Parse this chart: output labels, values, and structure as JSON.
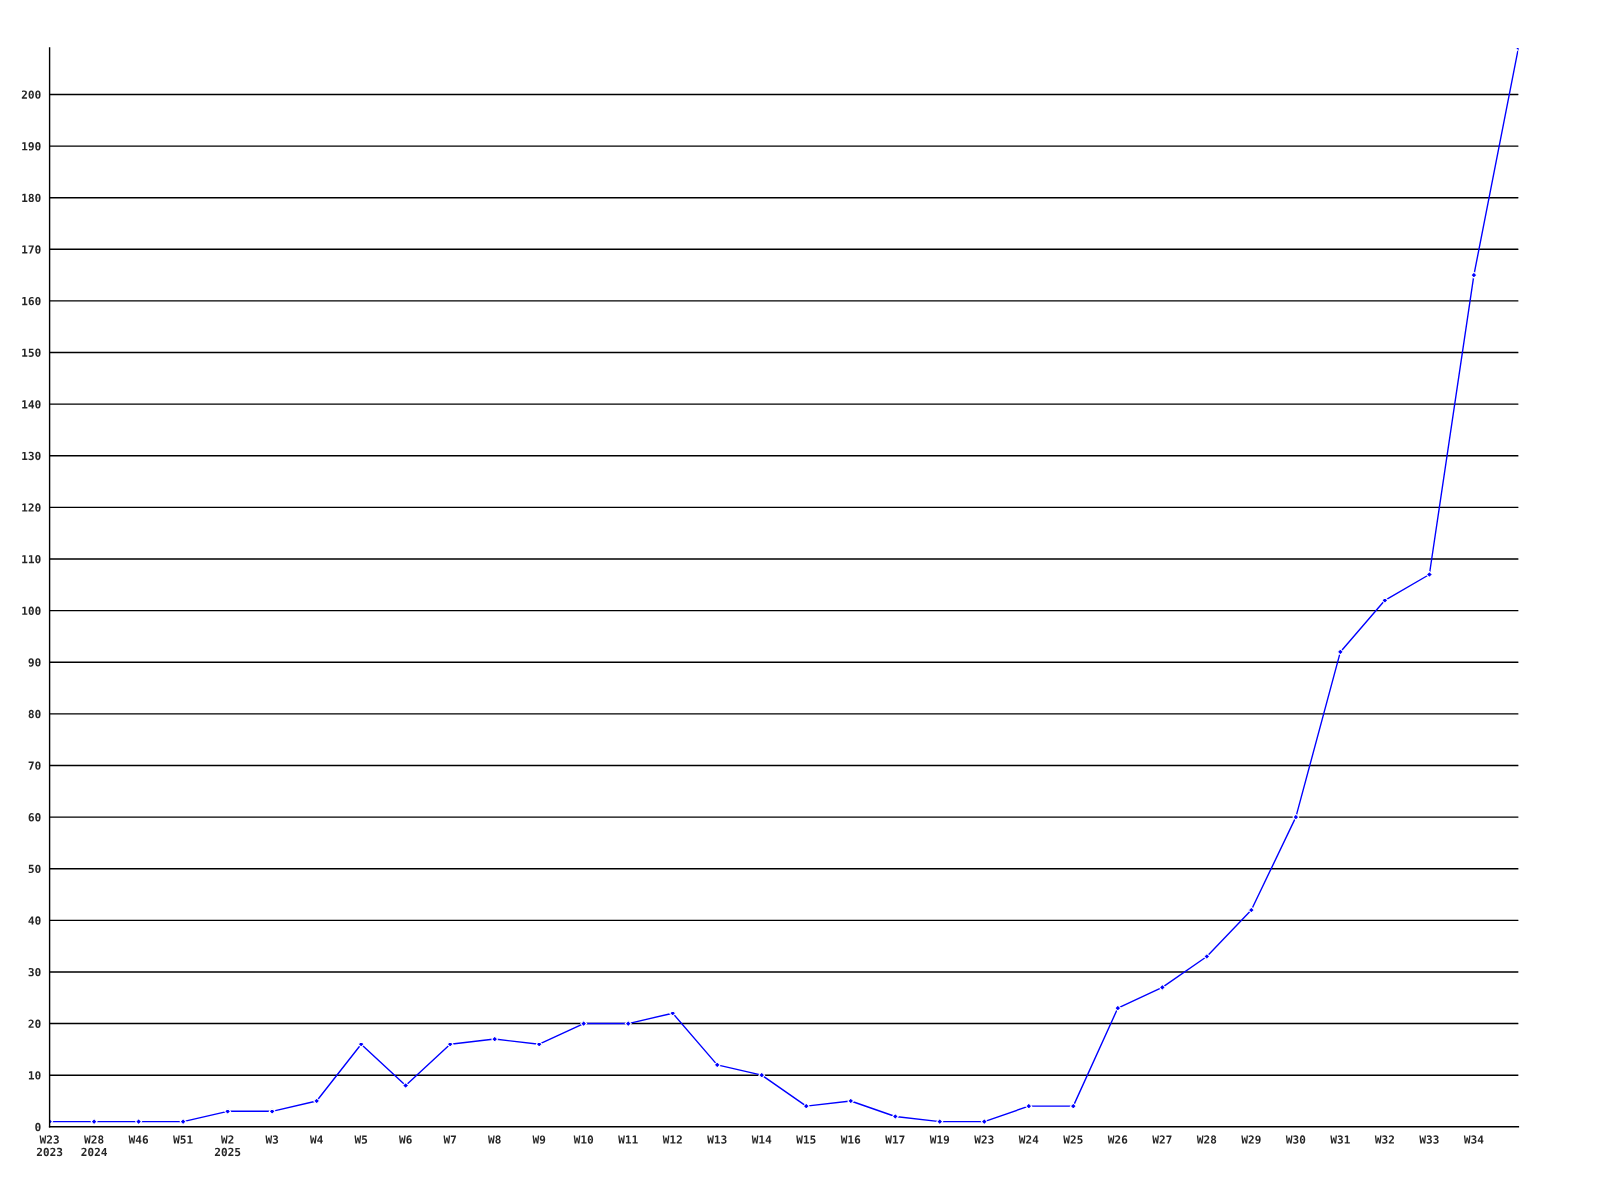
{
  "chart_data": {
    "type": "line",
    "categories": [
      "W23\n2023",
      "W28\n2024",
      "W46",
      "W51",
      "W2\n2025",
      "W3",
      "W4",
      "W5",
      "W6",
      "W7",
      "W8",
      "W9",
      "W10",
      "W11",
      "W12",
      "W13",
      "W14",
      "W15",
      "W16",
      "W17",
      "W19",
      "W23",
      "W24",
      "W25",
      "W26",
      "W27",
      "W28",
      "W29",
      "W30",
      "W31",
      "W32",
      "W33",
      "W34",
      null
    ],
    "series": [
      {
        "color": "#0000ff",
        "values": [
          1,
          1,
          1,
          1,
          3,
          3,
          5,
          16,
          8,
          16,
          17,
          16,
          20,
          20,
          22,
          12,
          10,
          4,
          5,
          2,
          1,
          1,
          4,
          4,
          23,
          27,
          33,
          42,
          60,
          92,
          102,
          107,
          165,
          209
        ]
      }
    ],
    "ylim": [
      0,
      209
    ],
    "yticks": [
      0,
      10,
      20,
      30,
      40,
      50,
      60,
      70,
      80,
      90,
      100,
      110,
      120,
      130,
      140,
      150,
      160,
      170,
      180,
      190,
      200
    ],
    "grid": "y",
    "marker": "diamond",
    "line_style": "solid"
  }
}
